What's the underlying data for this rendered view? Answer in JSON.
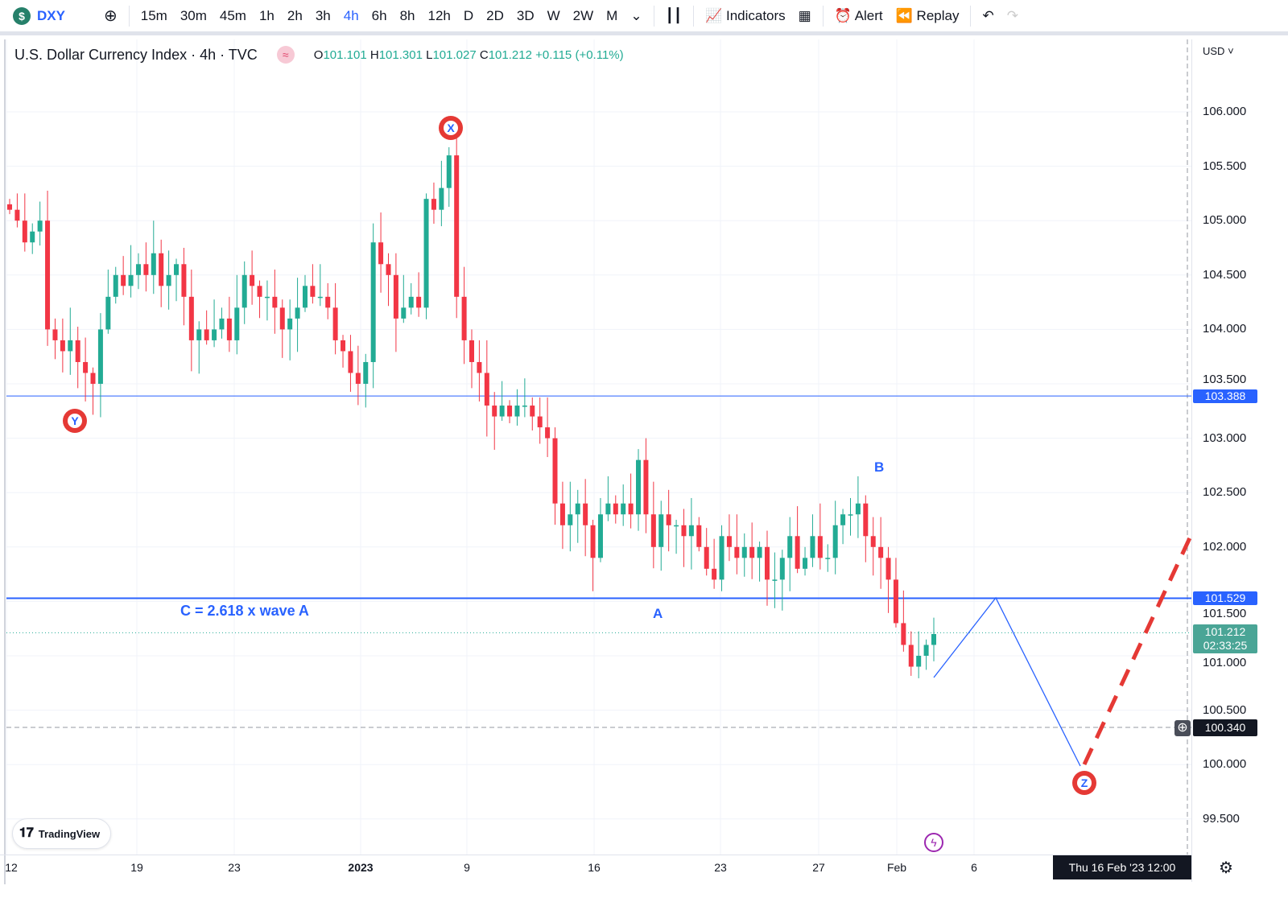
{
  "toolbar": {
    "symbol": "DXY",
    "intervals": [
      "15m",
      "30m",
      "45m",
      "1h",
      "2h",
      "3h",
      "4h",
      "6h",
      "8h",
      "12h",
      "D",
      "2D",
      "3D",
      "W",
      "2W",
      "M"
    ],
    "active_interval": "4h",
    "indicators": "Indicators",
    "alert": "Alert",
    "replay": "Replay"
  },
  "legend": {
    "title": "U.S. Dollar Currency Index · 4h · TVC",
    "o_label": "O",
    "o": "101.101",
    "h_label": "H",
    "h": "101.301",
    "l_label": "L",
    "l": "101.027",
    "c_label": "C",
    "c": "101.212",
    "change": "+0.115 (+0.11%)"
  },
  "price_axis": {
    "currency": "USD",
    "ticks": [
      "106.000",
      "105.500",
      "105.000",
      "104.500",
      "104.000",
      "103.500",
      "103.000",
      "102.500",
      "102.000",
      "101.500",
      "101.000",
      "100.500",
      "100.000",
      "99.500"
    ]
  },
  "price_tags": {
    "line1": "103.388",
    "line2": "101.529",
    "last": "101.212",
    "countdown": "02:33:25",
    "cursor": "100.340"
  },
  "time_axis": {
    "labels": [
      "12",
      "19",
      "23",
      "2023",
      "9",
      "16",
      "23",
      "27",
      "Feb",
      "6"
    ],
    "cursor": "Thu 16 Feb '23   12:00"
  },
  "annotations": {
    "x": "X",
    "y": "Y",
    "z": "Z",
    "a": "A",
    "b": "B",
    "c_text": "C = 2.618 x wave A"
  },
  "branding": "TradingView",
  "colors": {
    "up": "#22ab94",
    "down": "#f23645",
    "line": "#2962ff",
    "wave": "#e53935"
  },
  "chart_data": {
    "type": "candlestick",
    "ylim": [
      99.2,
      106.6
    ],
    "closes": [
      105.1,
      105.0,
      104.8,
      104.9,
      105.0,
      104.0,
      103.9,
      103.8,
      103.9,
      103.7,
      103.6,
      103.5,
      104.0,
      104.3,
      104.5,
      104.4,
      104.5,
      104.6,
      104.5,
      104.7,
      104.4,
      104.5,
      104.6,
      104.3,
      103.9,
      104.0,
      103.9,
      104.0,
      104.1,
      103.9,
      104.2,
      104.5,
      104.4,
      104.3,
      104.3,
      104.2,
      104.0,
      104.1,
      104.2,
      104.4,
      104.3,
      104.3,
      104.2,
      103.9,
      103.8,
      103.6,
      103.5,
      103.7,
      104.8,
      104.6,
      104.5,
      104.1,
      104.2,
      104.3,
      104.2,
      105.2,
      105.1,
      105.3,
      105.6,
      104.3,
      103.9,
      103.7,
      103.6,
      103.3,
      103.2,
      103.3,
      103.2,
      103.3,
      103.3,
      103.2,
      103.1,
      103.0,
      102.4,
      102.2,
      102.3,
      102.4,
      102.2,
      101.9,
      102.3,
      102.4,
      102.3,
      102.4,
      102.3,
      102.8,
      102.3,
      102.0,
      102.3,
      102.2,
      102.2,
      102.1,
      102.2,
      102.0,
      101.8,
      101.7,
      102.1,
      102.0,
      101.9,
      102.0,
      101.9,
      102.0,
      101.7,
      101.7,
      101.9,
      102.1,
      101.8,
      101.9,
      102.1,
      101.9,
      101.9,
      102.2,
      102.3,
      102.3,
      102.4,
      102.1,
      102.0,
      101.9,
      101.7,
      101.3,
      101.1,
      100.9,
      101.0,
      101.1,
      101.2
    ],
    "levels": [
      103.388,
      101.529
    ],
    "projection": [
      [
        101.529
      ],
      [
        100.0
      ]
    ]
  }
}
